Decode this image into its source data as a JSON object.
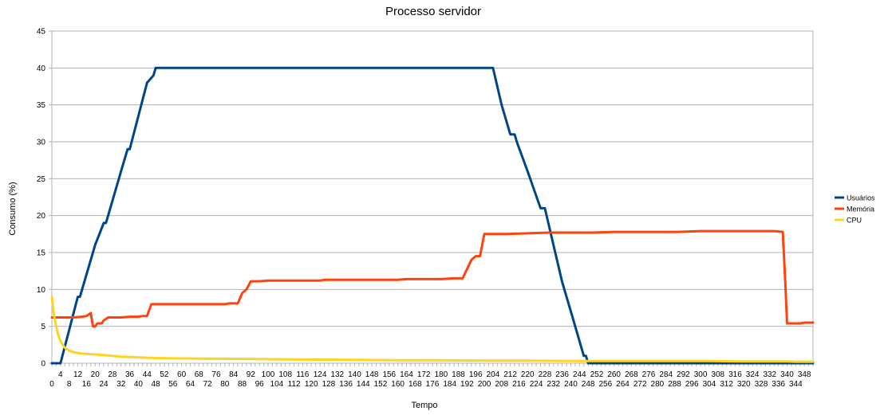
{
  "chart_data": {
    "type": "line",
    "title": "Processo servidor",
    "xlabel": "Tempo",
    "ylabel": "Consumo (%)",
    "xlim": [
      0,
      352
    ],
    "ylim": [
      0,
      45
    ],
    "y_ticks": [
      0,
      5,
      10,
      15,
      20,
      25,
      30,
      35,
      40,
      45
    ],
    "x_ticks_row1": [
      0,
      8,
      16,
      24,
      32,
      40,
      48,
      56,
      64,
      72,
      80,
      88,
      96,
      104,
      112,
      120,
      128,
      136,
      144,
      152,
      160,
      168,
      176,
      184,
      192,
      200,
      208,
      216,
      224,
      232,
      240,
      248,
      256,
      264,
      272,
      280,
      288,
      296,
      304,
      312,
      320,
      328,
      336,
      344
    ],
    "x_ticks_row2": [
      4,
      12,
      20,
      28,
      36,
      44,
      52,
      60,
      68,
      76,
      84,
      92,
      100,
      108,
      116,
      124,
      132,
      140,
      148,
      156,
      164,
      172,
      180,
      188,
      196,
      204,
      212,
      220,
      228,
      236,
      244,
      252,
      260,
      268,
      276,
      284,
      292,
      300,
      308,
      316,
      324,
      332,
      340,
      348
    ],
    "grid": "horizontal",
    "legend_position": "right",
    "series": [
      {
        "name": "Usuários",
        "color": "#004586",
        "x": [
          0,
          4,
          8,
          12,
          13,
          20,
          24,
          25,
          32,
          35,
          36,
          44,
          47,
          48,
          60,
          100,
          150,
          200,
          204,
          208,
          212,
          214,
          215,
          220,
          226,
          228,
          236,
          240,
          246,
          247,
          248,
          250,
          300,
          352
        ],
        "y": [
          0,
          0,
          4.5,
          9,
          9,
          16,
          19,
          19,
          26,
          29,
          29,
          38,
          39,
          40,
          40,
          40,
          40,
          40,
          40,
          35,
          31,
          31,
          30,
          26,
          21,
          21,
          11,
          7,
          1,
          1,
          0,
          0,
          0,
          0
        ]
      },
      {
        "name": "Memória",
        "color": "#ff420e",
        "x": [
          0,
          10,
          14,
          16,
          18,
          19,
          20,
          21,
          23,
          24,
          26,
          28,
          32,
          36,
          40,
          42,
          44,
          46,
          60,
          80,
          82,
          86,
          88,
          90,
          92,
          96,
          100,
          110,
          124,
          126,
          140,
          160,
          164,
          180,
          186,
          190,
          194,
          196,
          198,
          200,
          210,
          220,
          230,
          240,
          250,
          260,
          280,
          290,
          300,
          320,
          334,
          338,
          339,
          340,
          346,
          348,
          352
        ],
        "y": [
          6.2,
          6.2,
          6.3,
          6.4,
          6.8,
          5.0,
          5.0,
          5.4,
          5.4,
          5.8,
          6.2,
          6.2,
          6.2,
          6.3,
          6.3,
          6.4,
          6.4,
          8.0,
          8.0,
          8.0,
          8.1,
          8.1,
          9.5,
          10.0,
          11.1,
          11.1,
          11.2,
          11.2,
          11.2,
          11.3,
          11.3,
          11.3,
          11.4,
          11.4,
          11.5,
          11.5,
          14.0,
          14.5,
          14.5,
          17.5,
          17.5,
          17.6,
          17.7,
          17.7,
          17.7,
          17.8,
          17.8,
          17.8,
          17.9,
          17.9,
          17.9,
          17.8,
          12.0,
          5.4,
          5.4,
          5.5,
          5.5
        ]
      },
      {
        "name": "CPU",
        "color": "#ffd320",
        "x": [
          0,
          1,
          2,
          3,
          4,
          5,
          6,
          8,
          10,
          12,
          14,
          16,
          20,
          24,
          28,
          32,
          36,
          40,
          48,
          60,
          80,
          100,
          120,
          140,
          160,
          180,
          200,
          220,
          240,
          260,
          280,
          300,
          320,
          340,
          344,
          352
        ],
        "y": [
          9.0,
          6.5,
          5.0,
          3.8,
          3.0,
          2.5,
          2.1,
          1.7,
          1.5,
          1.4,
          1.3,
          1.25,
          1.2,
          1.1,
          1.0,
          0.9,
          0.85,
          0.8,
          0.7,
          0.65,
          0.6,
          0.55,
          0.5,
          0.45,
          0.4,
          0.4,
          0.35,
          0.35,
          0.3,
          0.3,
          0.3,
          0.3,
          0.25,
          0.25,
          0.2,
          0.2
        ]
      }
    ]
  }
}
